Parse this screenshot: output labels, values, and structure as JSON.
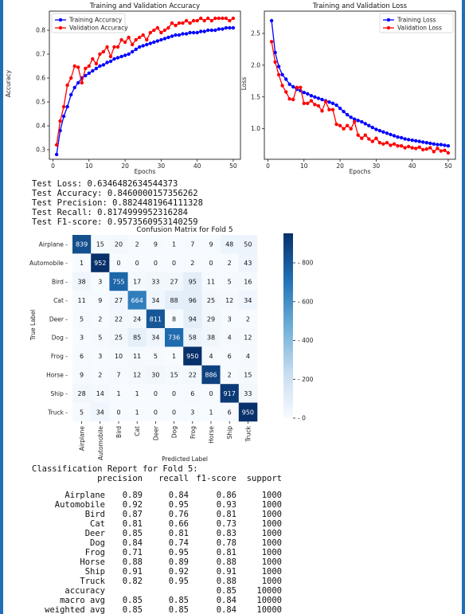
{
  "chart_data": [
    {
      "type": "line",
      "title": "Training and Validation Accuracy",
      "xlabel": "Epochs",
      "ylabel": "Accuracy",
      "xlim": [
        -1,
        52
      ],
      "ylim": [
        0.26,
        0.88
      ],
      "xticks": [
        0,
        10,
        20,
        30,
        40,
        50
      ],
      "yticks": [
        0.3,
        0.4,
        0.5,
        0.6,
        0.7,
        0.8
      ],
      "grid": false,
      "legend": "top-left",
      "x": [
        1,
        2,
        3,
        4,
        5,
        6,
        7,
        8,
        9,
        10,
        11,
        12,
        13,
        14,
        15,
        16,
        17,
        18,
        19,
        20,
        21,
        22,
        23,
        24,
        25,
        26,
        27,
        28,
        29,
        30,
        31,
        32,
        33,
        34,
        35,
        36,
        37,
        38,
        39,
        40,
        41,
        42,
        43,
        44,
        45,
        46,
        47,
        48,
        49,
        50
      ],
      "series": [
        {
          "name": "Training Accuracy",
          "color": "#0000ff",
          "values": [
            0.28,
            0.38,
            0.44,
            0.48,
            0.53,
            0.56,
            0.58,
            0.6,
            0.61,
            0.62,
            0.63,
            0.64,
            0.65,
            0.655,
            0.665,
            0.67,
            0.68,
            0.685,
            0.69,
            0.695,
            0.7,
            0.71,
            0.72,
            0.73,
            0.735,
            0.74,
            0.745,
            0.75,
            0.755,
            0.76,
            0.765,
            0.77,
            0.775,
            0.78,
            0.78,
            0.785,
            0.785,
            0.79,
            0.79,
            0.79,
            0.795,
            0.795,
            0.8,
            0.8,
            0.8,
            0.805,
            0.805,
            0.81,
            0.81,
            0.81
          ]
        },
        {
          "name": "Validation Accuracy",
          "color": "#ff0000",
          "values": [
            0.32,
            0.42,
            0.48,
            0.57,
            0.6,
            0.65,
            0.645,
            0.58,
            0.64,
            0.65,
            0.68,
            0.66,
            0.7,
            0.71,
            0.73,
            0.69,
            0.73,
            0.73,
            0.76,
            0.75,
            0.77,
            0.74,
            0.76,
            0.77,
            0.78,
            0.76,
            0.79,
            0.8,
            0.81,
            0.79,
            0.8,
            0.81,
            0.83,
            0.82,
            0.83,
            0.83,
            0.84,
            0.83,
            0.84,
            0.84,
            0.85,
            0.84,
            0.85,
            0.84,
            0.85,
            0.85,
            0.85,
            0.85,
            0.84,
            0.85
          ]
        }
      ]
    },
    {
      "type": "line",
      "title": "Training and Validation Loss",
      "xlabel": "Epochs",
      "ylabel": "Loss",
      "xlim": [
        -1,
        52
      ],
      "ylim": [
        0.52,
        2.85
      ],
      "xticks": [
        0,
        10,
        20,
        30,
        40,
        50
      ],
      "yticks": [
        1.0,
        1.5,
        2.0,
        2.5
      ],
      "grid": false,
      "legend": "top-right",
      "x": [
        1,
        2,
        3,
        4,
        5,
        6,
        7,
        8,
        9,
        10,
        11,
        12,
        13,
        14,
        15,
        16,
        17,
        18,
        19,
        20,
        21,
        22,
        23,
        24,
        25,
        26,
        27,
        28,
        29,
        30,
        31,
        32,
        33,
        34,
        35,
        36,
        37,
        38,
        39,
        40,
        41,
        42,
        43,
        44,
        45,
        46,
        47,
        48,
        49,
        50
      ],
      "series": [
        {
          "name": "Training Loss",
          "color": "#0000ff",
          "values": [
            2.7,
            2.2,
            1.98,
            1.85,
            1.78,
            1.7,
            1.66,
            1.62,
            1.6,
            1.57,
            1.55,
            1.52,
            1.5,
            1.48,
            1.46,
            1.44,
            1.42,
            1.4,
            1.37,
            1.32,
            1.27,
            1.22,
            1.18,
            1.15,
            1.13,
            1.11,
            1.08,
            1.05,
            1.02,
            0.99,
            0.97,
            0.95,
            0.93,
            0.91,
            0.89,
            0.87,
            0.86,
            0.84,
            0.83,
            0.82,
            0.81,
            0.8,
            0.79,
            0.78,
            0.77,
            0.76,
            0.75,
            0.75,
            0.74,
            0.73
          ]
        },
        {
          "name": "Validation Loss",
          "color": "#ff0000",
          "values": [
            2.37,
            2.05,
            1.85,
            1.68,
            1.58,
            1.47,
            1.46,
            1.65,
            1.65,
            1.4,
            1.4,
            1.44,
            1.38,
            1.36,
            1.28,
            1.43,
            1.3,
            1.3,
            1.07,
            1.05,
            1.0,
            1.05,
            1.0,
            1.11,
            0.9,
            0.85,
            0.9,
            0.84,
            0.8,
            0.85,
            0.78,
            0.76,
            0.78,
            0.74,
            0.76,
            0.73,
            0.73,
            0.7,
            0.72,
            0.7,
            0.69,
            0.71,
            0.67,
            0.68,
            0.7,
            0.64,
            0.69,
            0.65,
            0.66,
            0.62
          ]
        }
      ]
    },
    {
      "type": "heatmap",
      "title": "Confusion Matrix for Fold 5",
      "xlabel": "Predicted Label",
      "ylabel": "True Label",
      "labels": [
        "Airplane",
        "Automobile",
        "Bird",
        "Cat",
        "Deer",
        "Dog",
        "Frog",
        "Horse",
        "Ship",
        "Truck"
      ],
      "matrix": [
        [
          839,
          15,
          20,
          2,
          9,
          1,
          7,
          9,
          48,
          50
        ],
        [
          1,
          952,
          0,
          0,
          0,
          0,
          2,
          0,
          2,
          43
        ],
        [
          38,
          3,
          755,
          17,
          33,
          27,
          95,
          11,
          5,
          16
        ],
        [
          11,
          9,
          27,
          664,
          34,
          88,
          96,
          25,
          12,
          34
        ],
        [
          5,
          2,
          22,
          24,
          811,
          8,
          94,
          29,
          3,
          2
        ],
        [
          3,
          5,
          25,
          85,
          34,
          736,
          58,
          38,
          4,
          12
        ],
        [
          6,
          3,
          10,
          11,
          5,
          1,
          950,
          4,
          6,
          4
        ],
        [
          9,
          2,
          7,
          12,
          30,
          15,
          22,
          886,
          2,
          15
        ],
        [
          28,
          14,
          1,
          1,
          0,
          0,
          6,
          0,
          917,
          33
        ],
        [
          5,
          34,
          0,
          1,
          0,
          0,
          3,
          1,
          6,
          950
        ]
      ],
      "colorbar_ticks": [
        0,
        200,
        400,
        600,
        800
      ],
      "vmin": 0,
      "vmax": 952
    }
  ],
  "test_metrics": [
    "Test Loss: 0.6346482634544373",
    "Test Accuracy: 0.8460000157356262",
    "Test Precision: 0.8824481964111328",
    "Test Recall: 0.8174999952316284",
    "Test F1-score: 0.9573560953140259"
  ],
  "report": {
    "title": "Classification Report for Fold 5:",
    "headers": [
      "precision",
      "recall",
      "f1-score",
      "support"
    ],
    "rows": [
      [
        "Airplane",
        "0.89",
        "0.84",
        "0.86",
        "1000"
      ],
      [
        "Automobile",
        "0.92",
        "0.95",
        "0.93",
        "1000"
      ],
      [
        "Bird",
        "0.87",
        "0.76",
        "0.81",
        "1000"
      ],
      [
        "Cat",
        "0.81",
        "0.66",
        "0.73",
        "1000"
      ],
      [
        "Deer",
        "0.85",
        "0.81",
        "0.83",
        "1000"
      ],
      [
        "Dog",
        "0.84",
        "0.74",
        "0.78",
        "1000"
      ],
      [
        "Frog",
        "0.71",
        "0.95",
        "0.81",
        "1000"
      ],
      [
        "Horse",
        "0.88",
        "0.89",
        "0.88",
        "1000"
      ],
      [
        "Ship",
        "0.91",
        "0.92",
        "0.91",
        "1000"
      ],
      [
        "Truck",
        "0.82",
        "0.95",
        "0.88",
        "1000"
      ]
    ],
    "summary": [
      [
        "accuracy",
        "",
        "",
        "0.85",
        "10000"
      ],
      [
        "macro avg",
        "0.85",
        "0.85",
        "0.84",
        "10000"
      ],
      [
        "weighted avg",
        "0.85",
        "0.85",
        "0.84",
        "10000"
      ]
    ]
  }
}
